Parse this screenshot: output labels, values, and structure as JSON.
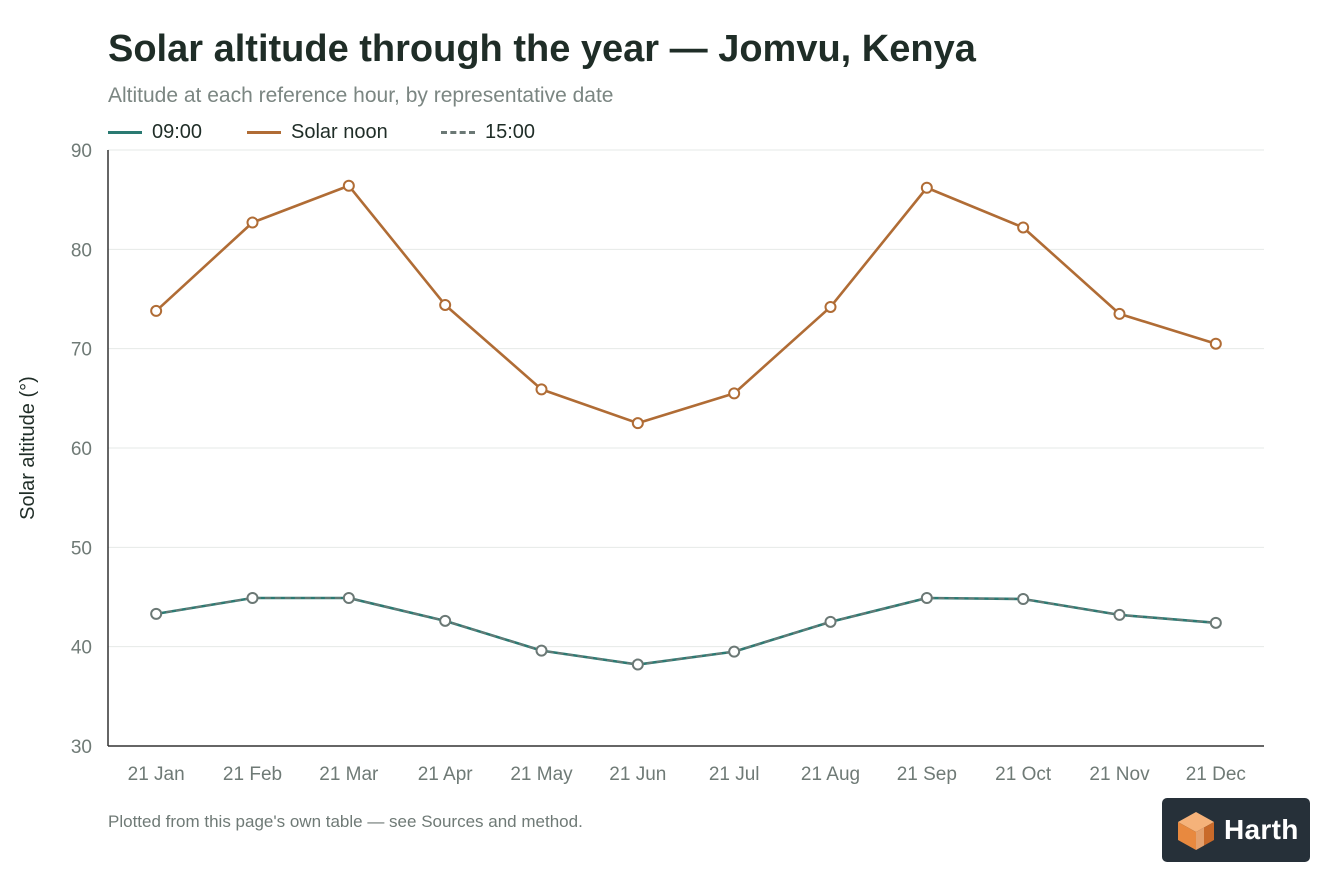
{
  "header": {
    "title": "Solar altitude through the year — Jomvu, Kenya",
    "subtitle": "Altitude at each reference hour, by representative date"
  },
  "footnote": "Plotted from this page's own table — see Sources and method.",
  "brand": {
    "name": "Harth",
    "icon": "cube-logo-icon"
  },
  "colors": {
    "am": "#2a7a72",
    "noon": "#b06c35",
    "pm": "#6b7875",
    "grid": "#e6e9e7",
    "axis": "#333333"
  },
  "chart_data": {
    "type": "line",
    "title": "Solar altitude through the year — Jomvu, Kenya",
    "subtitle": "Altitude at each reference hour, by representative date",
    "xlabel": "",
    "ylabel": "Solar altitude (°)",
    "ylim": [
      30,
      90
    ],
    "yticks": [
      30,
      40,
      50,
      60,
      70,
      80,
      90
    ],
    "grid": true,
    "legend": "top-left",
    "categories": [
      "21 Jan",
      "21 Feb",
      "21 Mar",
      "21 Apr",
      "21 May",
      "21 Jun",
      "21 Jul",
      "21 Aug",
      "21 Sep",
      "21 Oct",
      "21 Nov",
      "21 Dec"
    ],
    "series": [
      {
        "name": "09:00",
        "style": "solid",
        "color": "#2a7a72",
        "values": [
          43.3,
          44.9,
          44.9,
          42.6,
          39.6,
          38.2,
          39.5,
          42.5,
          44.9,
          44.8,
          43.2,
          42.4
        ]
      },
      {
        "name": "Solar noon",
        "style": "solid",
        "color": "#b06c35",
        "values": [
          73.8,
          82.7,
          86.4,
          74.4,
          65.9,
          62.5,
          65.5,
          74.2,
          86.2,
          82.2,
          73.5,
          70.5
        ]
      },
      {
        "name": "15:00",
        "style": "dashed",
        "color": "#6b7875",
        "values": [
          43.3,
          44.9,
          44.9,
          42.6,
          39.6,
          38.2,
          39.5,
          42.5,
          44.9,
          44.8,
          43.2,
          42.4
        ]
      }
    ]
  }
}
